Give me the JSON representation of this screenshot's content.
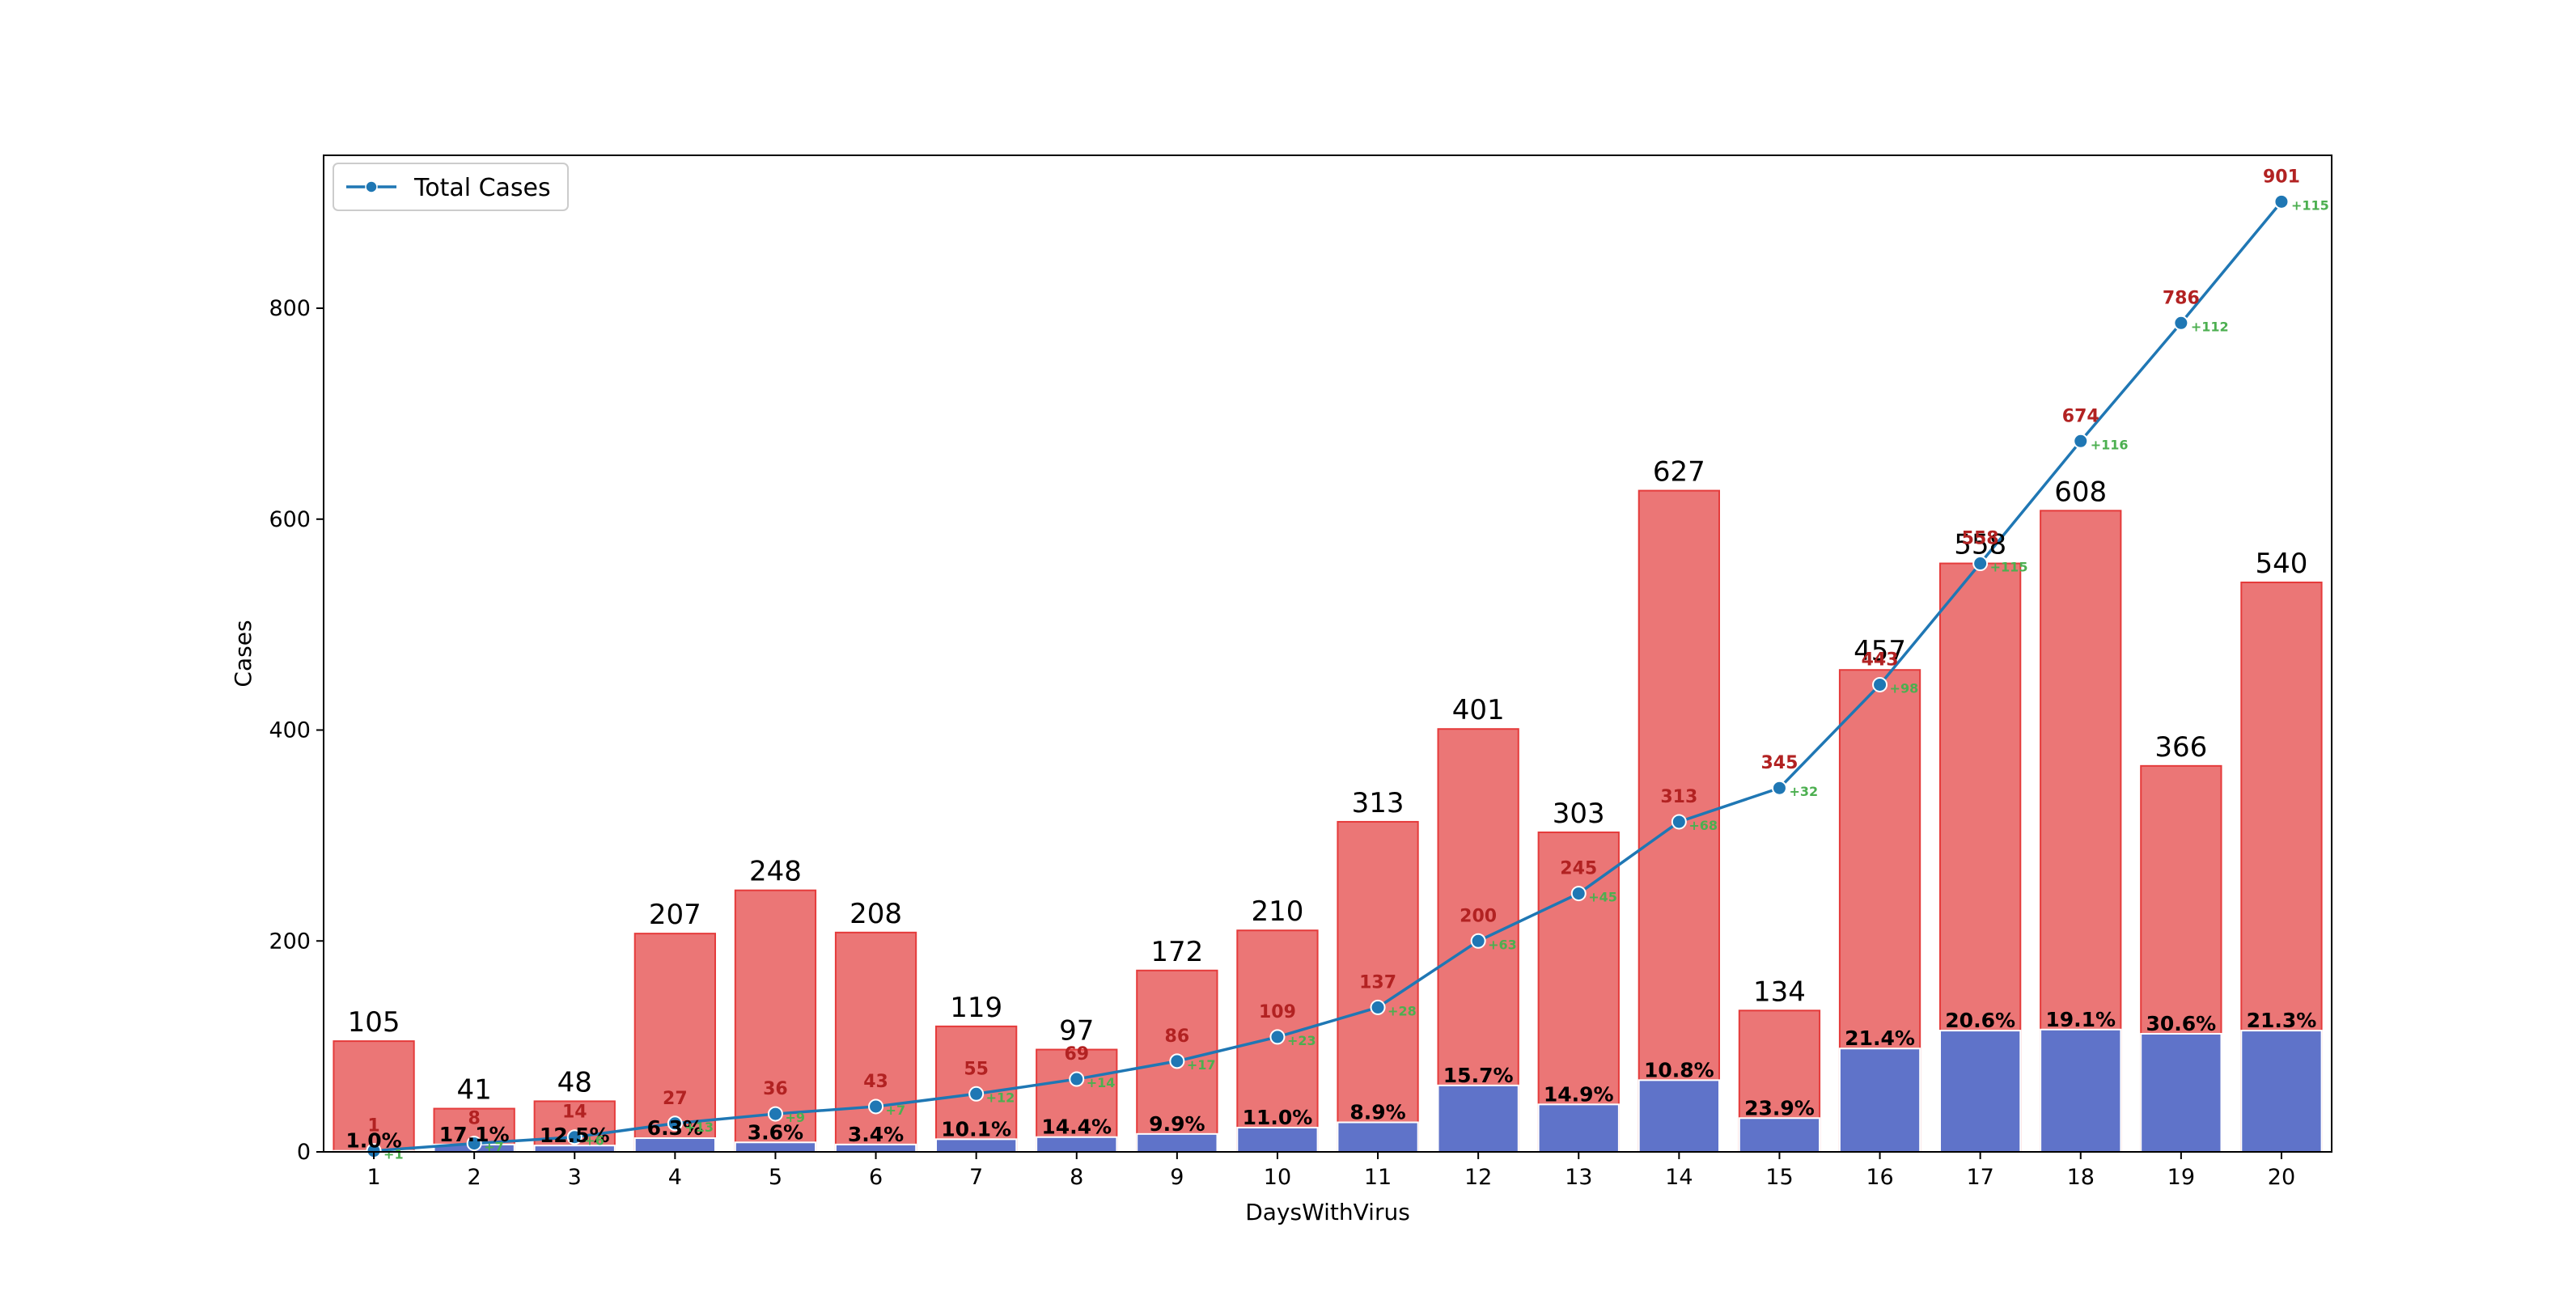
{
  "chart_data": {
    "type": "bar",
    "title": "",
    "xlabel": "DaysWithVirus",
    "ylabel": "Cases",
    "ylim": [
      0,
      945
    ],
    "yticks": [
      0,
      200,
      400,
      600,
      800
    ],
    "categories": [
      "1",
      "2",
      "3",
      "4",
      "5",
      "6",
      "7",
      "8",
      "9",
      "10",
      "11",
      "12",
      "13",
      "14",
      "15",
      "16",
      "17",
      "18",
      "19",
      "20"
    ],
    "series": [
      {
        "kind": "bar",
        "values": [
          105,
          41,
          48,
          207,
          248,
          208,
          119,
          97,
          172,
          210,
          313,
          401,
          303,
          627,
          134,
          457,
          558,
          608,
          366,
          540
        ],
        "color": "#eb7676",
        "edge_color": "#e53b3b",
        "value_labels": [
          "105",
          "41",
          "48",
          "207",
          "248",
          "208",
          "119",
          "97",
          "172",
          "210",
          "313",
          "401",
          "303",
          "627",
          "134",
          "457",
          "558",
          "608",
          "366",
          "540"
        ]
      },
      {
        "kind": "bar",
        "values": [
          1,
          7,
          6,
          13,
          9,
          7,
          12,
          14,
          17,
          23,
          28,
          63,
          45,
          68,
          32,
          98,
          115,
          116,
          112,
          115
        ],
        "color": "#5f73c9",
        "pct_labels": [
          "1.0%",
          "17.1%",
          "12.5%",
          "6.3%",
          "3.6%",
          "3.4%",
          "10.1%",
          "14.4%",
          "9.9%",
          "11.0%",
          "8.9%",
          "15.7%",
          "14.9%",
          "10.8%",
          "23.9%",
          "21.4%",
          "20.6%",
          "19.1%",
          "30.6%",
          "21.3%"
        ]
      },
      {
        "kind": "line",
        "name": "Total Cases",
        "values": [
          1,
          8,
          14,
          27,
          36,
          43,
          55,
          69,
          86,
          109,
          137,
          200,
          245,
          313,
          345,
          443,
          558,
          674,
          786,
          901
        ],
        "color": "#1f77b4",
        "point_labels": [
          "1",
          "8",
          "14",
          "27",
          "36",
          "43",
          "55",
          "69",
          "86",
          "109",
          "137",
          "200",
          "245",
          "313",
          "345",
          "443",
          "558",
          "674",
          "786",
          "901"
        ],
        "increment_labels": [
          "+1",
          "+7",
          "+6",
          "+13",
          "+9",
          "+7",
          "+12",
          "+14",
          "+17",
          "+23",
          "+28",
          "+63",
          "+45",
          "+68",
          "+32",
          "+98",
          "+115",
          "+116",
          "+112",
          "+115"
        ]
      }
    ],
    "legend": {
      "placement": "top-left",
      "entries": [
        "Total Cases"
      ]
    },
    "grid": false
  }
}
